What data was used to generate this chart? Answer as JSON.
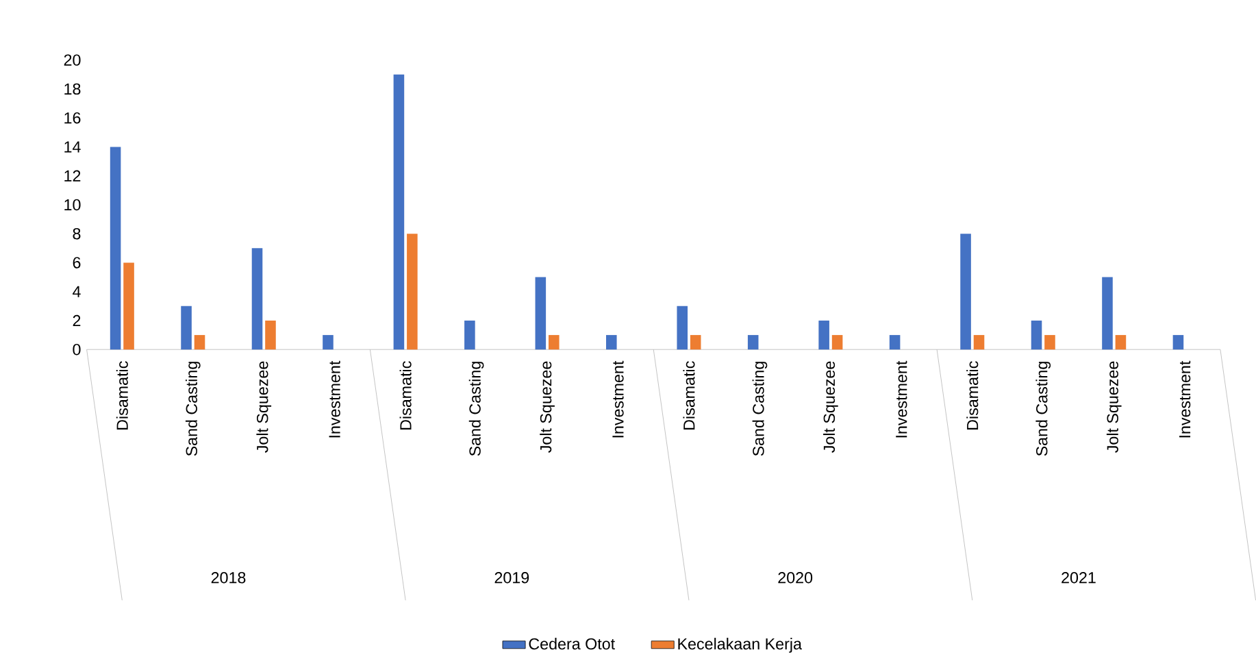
{
  "chart_data": {
    "type": "bar",
    "categories": [
      "Disamatic",
      "Sand Casting",
      "Jolt Squezee",
      "Investment",
      "Disamatic",
      "Sand Casting",
      "Jolt Squezee",
      "Investment",
      "Disamatic",
      "Sand Casting",
      "Jolt Squezee",
      "Investment",
      "Disamatic",
      "Sand Casting",
      "Jolt Squezee",
      "Investment"
    ],
    "series": [
      {
        "name": "Cedera Otot",
        "color": "#4472c4",
        "values": [
          14,
          3,
          7,
          1,
          19,
          2,
          5,
          1,
          3,
          1,
          2,
          1,
          8,
          2,
          5,
          1
        ]
      },
      {
        "name": "Kecelakaan Kerja",
        "color": "#ed7d31",
        "values": [
          6,
          1,
          2,
          0,
          8,
          0,
          1,
          0,
          1,
          0,
          1,
          0,
          1,
          1,
          1,
          0
        ]
      }
    ],
    "annotations": [
      "2018",
      "2019",
      "2020",
      "2021"
    ],
    "ylim": [
      0,
      20
    ],
    "yticks": [
      0,
      2,
      4,
      6,
      8,
      10,
      12,
      14,
      16,
      18,
      20
    ],
    "legend": "bottom"
  }
}
